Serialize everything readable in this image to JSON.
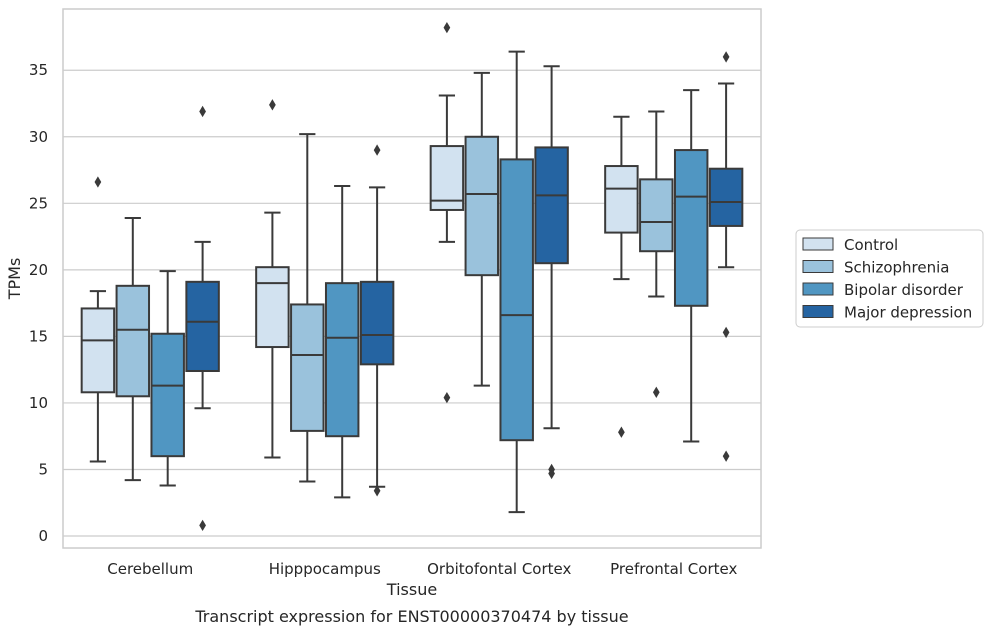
{
  "chart_data": {
    "type": "box",
    "caption": "Transcript expression for ENST00000370474 by tissue",
    "xlabel": "Tissue",
    "ylabel": "TPMs",
    "ylim": [
      -0.9,
      39.6
    ],
    "yticks": [
      0,
      5,
      10,
      15,
      20,
      25,
      30,
      35
    ],
    "grid": "horizontal",
    "legend_position": "right",
    "categories": [
      "Cerebellum",
      "Hipppocampus",
      "Orbitofontal Cortex",
      "Prefrontal Cortex"
    ],
    "series": [
      {
        "name": "Control",
        "color": "#d2e2f0",
        "boxes": [
          {
            "whislo": 5.6,
            "q1": 10.8,
            "med": 14.7,
            "q3": 17.1,
            "whishi": 18.4,
            "fliers": [
              26.6
            ]
          },
          {
            "whislo": 5.9,
            "q1": 14.2,
            "med": 19.0,
            "q3": 20.2,
            "whishi": 24.3,
            "fliers": [
              32.4
            ]
          },
          {
            "whislo": 22.1,
            "q1": 24.5,
            "med": 25.2,
            "q3": 29.3,
            "whishi": 33.1,
            "fliers": [
              38.2,
              10.4
            ]
          },
          {
            "whislo": 19.3,
            "q1": 22.8,
            "med": 26.1,
            "q3": 27.8,
            "whishi": 31.5,
            "fliers": [
              7.8
            ]
          }
        ]
      },
      {
        "name": "Schizophrenia",
        "color": "#9ac2dc",
        "boxes": [
          {
            "whislo": 4.2,
            "q1": 10.5,
            "med": 15.5,
            "q3": 18.8,
            "whishi": 23.9,
            "fliers": []
          },
          {
            "whislo": 4.1,
            "q1": 7.9,
            "med": 13.6,
            "q3": 17.4,
            "whishi": 30.2,
            "fliers": []
          },
          {
            "whislo": 11.3,
            "q1": 19.6,
            "med": 25.7,
            "q3": 30.0,
            "whishi": 34.8,
            "fliers": []
          },
          {
            "whislo": 18.0,
            "q1": 21.4,
            "med": 23.6,
            "q3": 26.8,
            "whishi": 31.9,
            "fliers": [
              10.8
            ]
          }
        ]
      },
      {
        "name": "Bipolar disorder",
        "color": "#5096c2",
        "boxes": [
          {
            "whislo": 3.8,
            "q1": 6.0,
            "med": 11.3,
            "q3": 15.2,
            "whishi": 19.9,
            "fliers": []
          },
          {
            "whislo": 2.9,
            "q1": 7.5,
            "med": 14.9,
            "q3": 19.0,
            "whishi": 26.3,
            "fliers": []
          },
          {
            "whislo": 1.8,
            "q1": 7.2,
            "med": 16.6,
            "q3": 28.3,
            "whishi": 36.4,
            "fliers": []
          },
          {
            "whislo": 7.1,
            "q1": 17.3,
            "med": 25.5,
            "q3": 29.0,
            "whishi": 33.5,
            "fliers": []
          }
        ]
      },
      {
        "name": "Major depression",
        "color": "#2564a2",
        "boxes": [
          {
            "whislo": 9.6,
            "q1": 12.4,
            "med": 16.1,
            "q3": 19.1,
            "whishi": 22.1,
            "fliers": [
              31.9,
              0.8
            ]
          },
          {
            "whislo": 3.7,
            "q1": 12.9,
            "med": 15.1,
            "q3": 19.1,
            "whishi": 26.2,
            "fliers": [
              29.0,
              3.4
            ]
          },
          {
            "whislo": 8.1,
            "q1": 20.5,
            "med": 25.6,
            "q3": 29.2,
            "whishi": 35.3,
            "fliers": [
              5.0,
              4.7
            ]
          },
          {
            "whislo": 20.2,
            "q1": 23.3,
            "med": 25.1,
            "q3": 27.6,
            "whishi": 34.0,
            "fliers": [
              36.0,
              15.3,
              6.0
            ]
          }
        ]
      }
    ]
  }
}
